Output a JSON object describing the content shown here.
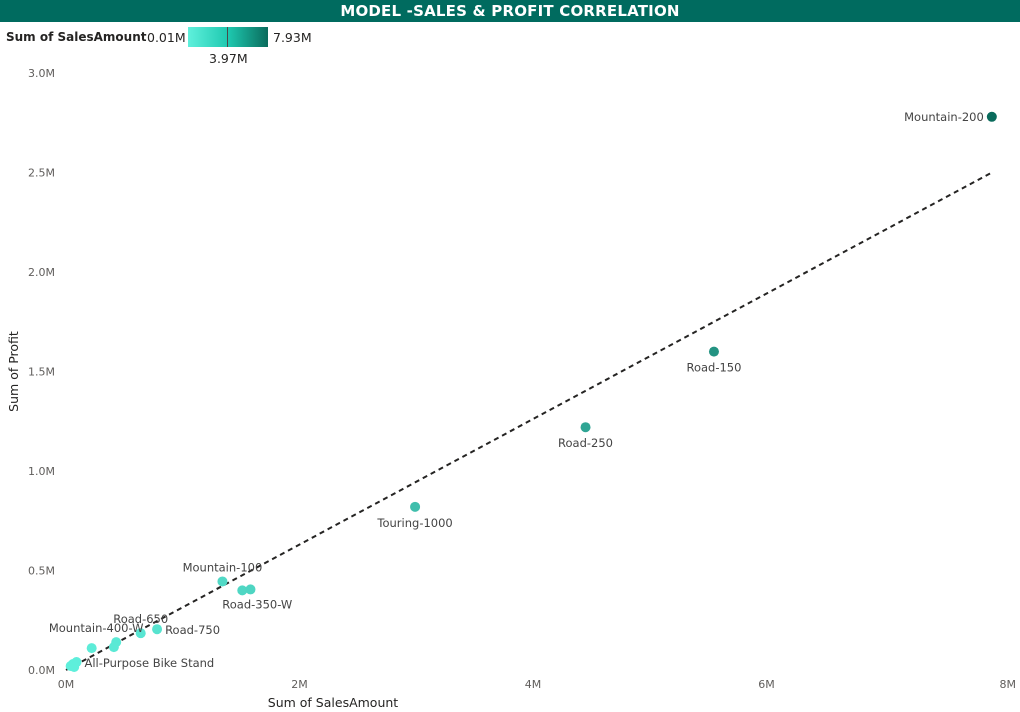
{
  "header": {
    "title": "MODEL -SALES & PROFIT CORRELATION"
  },
  "legend": {
    "title": "Sum of SalesAmount",
    "min_label": "0.01M",
    "mid_label": "3.97M",
    "max_label": "7.93M",
    "color_low": "#5ff0dc",
    "color_high": "#0a6b5c"
  },
  "chart_data": {
    "type": "scatter",
    "xlabel": "Sum of SalesAmount",
    "ylabel": "Sum of Profit",
    "xlim": [
      0,
      8000000
    ],
    "ylim": [
      0,
      3000000
    ],
    "x_ticks": [
      {
        "value": 0,
        "label": "0M"
      },
      {
        "value": 2000000,
        "label": "2M"
      },
      {
        "value": 4000000,
        "label": "4M"
      },
      {
        "value": 6000000,
        "label": "6M"
      },
      {
        "value": 8000000,
        "label": "8M"
      }
    ],
    "y_ticks": [
      {
        "value": 0,
        "label": "0.0M"
      },
      {
        "value": 500000,
        "label": "0.5M"
      },
      {
        "value": 1000000,
        "label": "1.0M"
      },
      {
        "value": 1500000,
        "label": "1.5M"
      },
      {
        "value": 2000000,
        "label": "2.0M"
      },
      {
        "value": 2500000,
        "label": "2.5M"
      },
      {
        "value": 3000000,
        "label": "3.0M"
      }
    ],
    "grid": false,
    "trend_line": {
      "style": "dashed",
      "from": [
        0,
        0
      ],
      "to": [
        7930000,
        2500000
      ]
    },
    "points": [
      {
        "name": "Mountain-200",
        "x": 7930000,
        "y": 2780000,
        "label_pos": "left"
      },
      {
        "name": "Road-150",
        "x": 5550000,
        "y": 1600000,
        "label_pos": "below"
      },
      {
        "name": "Road-250",
        "x": 4450000,
        "y": 1220000,
        "label_pos": "below"
      },
      {
        "name": "Touring-1000",
        "x": 2990000,
        "y": 820000,
        "label_pos": "below"
      },
      {
        "name": "Mountain-100",
        "x": 1340000,
        "y": 445000,
        "label_pos": "above"
      },
      {
        "name": "Road-350-W",
        "x": 1510000,
        "y": 400000,
        "label_pos": "below"
      },
      {
        "name": "",
        "x": 1580000,
        "y": 405000
      },
      {
        "name": "Road-650",
        "x": 640000,
        "y": 185000,
        "label_pos": "above"
      },
      {
        "name": "Road-750",
        "x": 780000,
        "y": 205000,
        "label_pos": "right"
      },
      {
        "name": "Mountain-400-W",
        "x": 430000,
        "y": 140000,
        "label_pos": "above"
      },
      {
        "name": "",
        "x": 410000,
        "y": 115000
      },
      {
        "name": "",
        "x": 220000,
        "y": 110000
      },
      {
        "name": "All-Purpose Bike Stand",
        "x": 90000,
        "y": 40000,
        "label_pos": "right"
      },
      {
        "name": "",
        "x": 40000,
        "y": 20000
      },
      {
        "name": "",
        "x": 60000,
        "y": 30000
      },
      {
        "name": "",
        "x": 70000,
        "y": 15000
      }
    ]
  }
}
